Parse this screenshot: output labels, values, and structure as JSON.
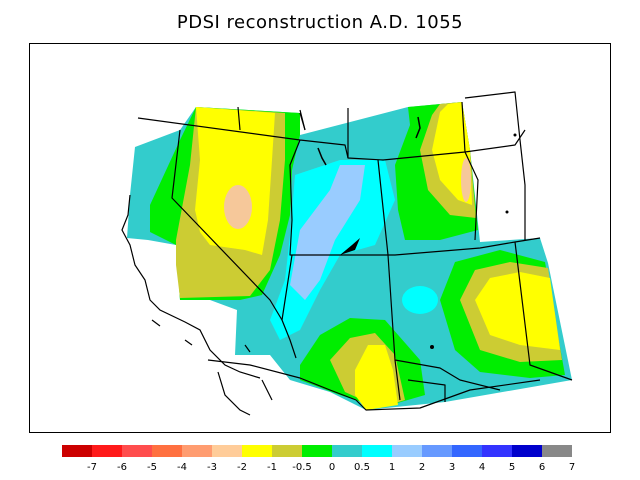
{
  "title": "PDSI reconstruction A.D. 1055",
  "legend": {
    "colors": [
      "#cc0000",
      "#ff1a1a",
      "#ff4d4d",
      "#ff7040",
      "#ff9c70",
      "#ffcc99",
      "#ffff00",
      "#cccc33",
      "#00ee00",
      "#33cccc",
      "#00ffff",
      "#99ccff",
      "#6699ff",
      "#3366ff",
      "#3333ff",
      "#0000cc",
      "#888888"
    ],
    "ticks": [
      "-7",
      "-6",
      "-5",
      "-4",
      "-3",
      "-2",
      "-1",
      "-0.5",
      "0",
      "0.5",
      "1",
      "2",
      "3",
      "4",
      "5",
      "6",
      "7"
    ]
  },
  "colors": {
    "yellow": "#ffff00",
    "olive": "#cccc33",
    "green": "#00ee00",
    "teal": "#33cccc",
    "cyan": "#00ffff",
    "lightblue": "#99ccff",
    "peach": "#f6c89a"
  }
}
